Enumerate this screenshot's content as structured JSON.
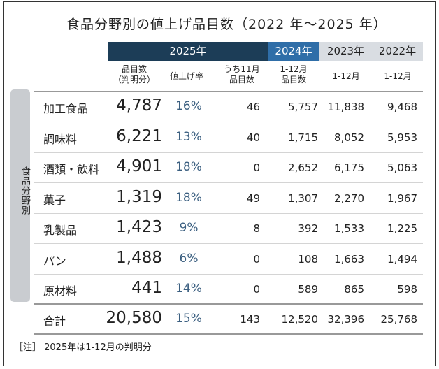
{
  "chart_data": {
    "type": "table",
    "title": "食品分野別の値上げ品目数（2022 年～2025 年）",
    "year_headers": [
      "2025年",
      "2024年",
      "2023年",
      "2022年"
    ],
    "columns": [
      "品目数\n（判明分）",
      "値上げ率",
      "うち11月\n品目数",
      "1-12月\n品目数",
      "1-12月",
      "1-12月"
    ],
    "side_label": "食品分野別",
    "rows": [
      {
        "category": "加工食品",
        "items_2025": "4,787",
        "rate": "16%",
        "nov_items": "46",
        "y2024": "5,757",
        "y2023": "11,838",
        "y2022": "9,468"
      },
      {
        "category": "調味料",
        "items_2025": "6,221",
        "rate": "13%",
        "nov_items": "40",
        "y2024": "1,715",
        "y2023": "8,052",
        "y2022": "5,953"
      },
      {
        "category": "酒類・飲料",
        "items_2025": "4,901",
        "rate": "18%",
        "nov_items": "0",
        "y2024": "2,652",
        "y2023": "6,175",
        "y2022": "5,063"
      },
      {
        "category": "菓子",
        "items_2025": "1,319",
        "rate": "18%",
        "nov_items": "49",
        "y2024": "1,307",
        "y2023": "2,270",
        "y2022": "1,967"
      },
      {
        "category": "乳製品",
        "items_2025": "1,423",
        "rate": "9%",
        "nov_items": "8",
        "y2024": "392",
        "y2023": "1,533",
        "y2022": "1,225"
      },
      {
        "category": "パン",
        "items_2025": "1,488",
        "rate": "6%",
        "nov_items": "0",
        "y2024": "108",
        "y2023": "1,663",
        "y2022": "1,494"
      },
      {
        "category": "原材料",
        "items_2025": "441",
        "rate": "14%",
        "nov_items": "0",
        "y2024": "589",
        "y2023": "865",
        "y2022": "598"
      }
    ],
    "total": {
      "category": "合計",
      "items_2025": "20,580",
      "rate": "15%",
      "nov_items": "143",
      "y2024": "12,520",
      "y2023": "32,396",
      "y2022": "25,768"
    },
    "note": "［注］ 2025年は1-12月の判明分"
  }
}
